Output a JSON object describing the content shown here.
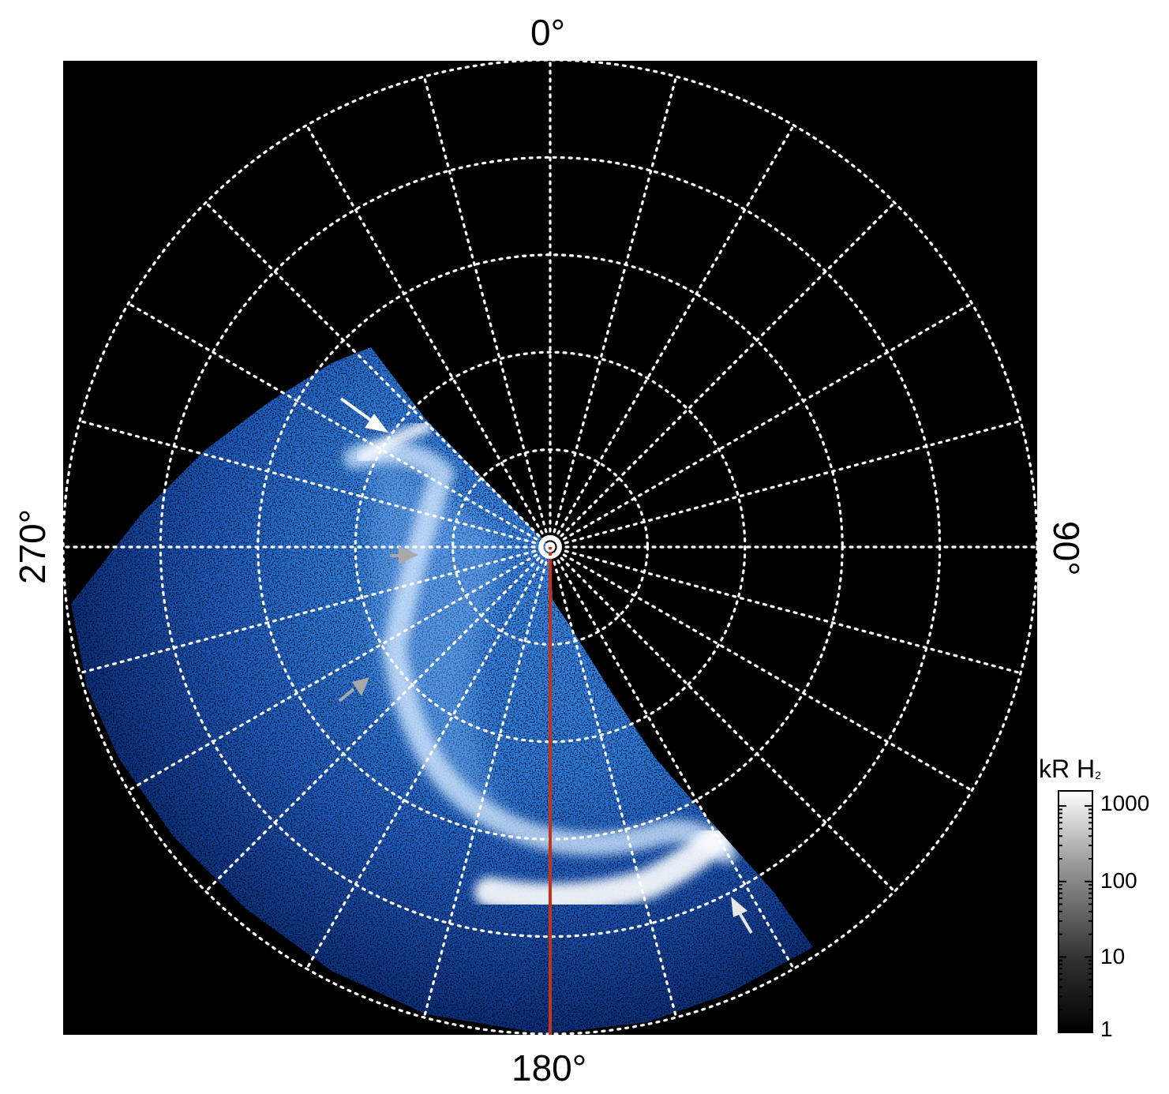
{
  "figure": {
    "azimuth_labels": {
      "top": "0°",
      "right": "90°",
      "bottom": "180°",
      "left": "270°"
    },
    "colorbar": {
      "title": "kR H",
      "title_subscript": "2",
      "ticks": [
        "1000",
        "100",
        "10",
        "1"
      ],
      "scale": "log"
    },
    "colors": {
      "background": "#000000",
      "grid": "#ffffff",
      "emission_low": "#0a2a6e",
      "emission_mid": "#2f7fe0",
      "emission_high": "#ffffff",
      "meridian_line": "#c83214",
      "arrow_primary": "#ffffff",
      "arrow_secondary": "#a8a8a8"
    },
    "grid": {
      "radial_spokes": 24,
      "concentric_circles": 5,
      "style": "dotted"
    },
    "icons": [
      "arrow-primary-icon",
      "arrow-secondary-icon",
      "pole-marker-icon"
    ]
  }
}
